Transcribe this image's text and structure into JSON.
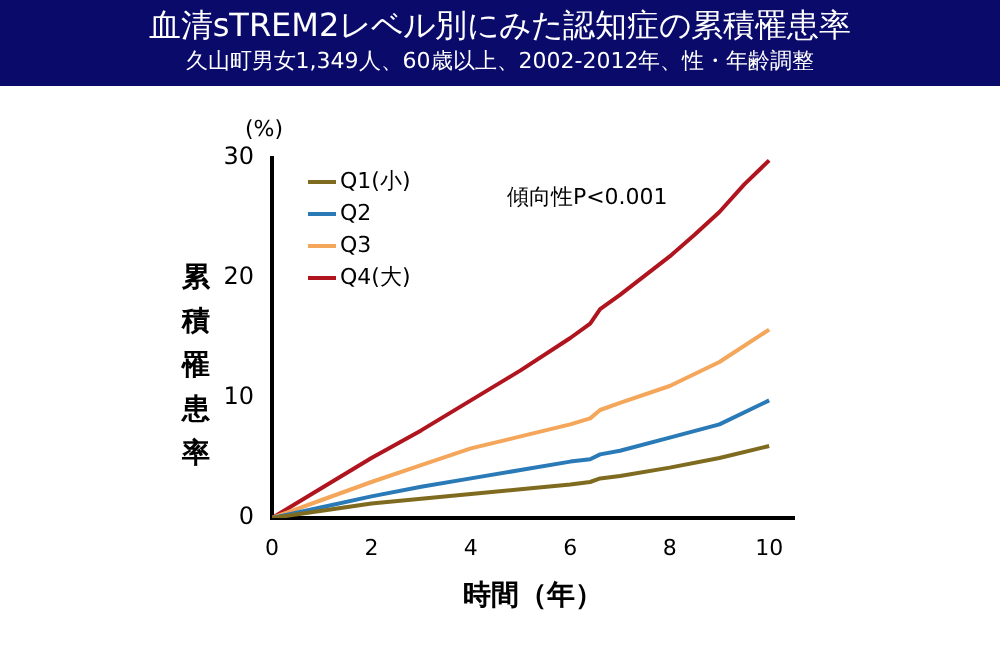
{
  "chart_data": {
    "type": "line",
    "title": "血清sTREM2レベル別にみた認知症の累積罹患率",
    "subtitle": "久山町男女1,349人、60歳以上、2002-2012年、性・年齢調整",
    "xlabel": "時間（年）",
    "ylabel": "累積罹患率",
    "annotations": [
      "傾向性P<0.001",
      "(%)"
    ],
    "xlim": [
      0,
      10.5
    ],
    "xticks": [
      0,
      2,
      4,
      6,
      8,
      10
    ],
    "ylim": [
      0,
      30
    ],
    "yticks": [
      0,
      10,
      20,
      30
    ],
    "grid": false,
    "legend": "top left",
    "marker": "none",
    "line_style": "solid",
    "series": [
      {
        "name": "Q1(小)",
        "color": "#7f6b1f",
        "x": [
          0,
          1,
          2,
          3,
          4,
          5,
          6,
          6.4,
          6.6,
          7,
          8,
          9,
          10
        ],
        "values": [
          0,
          0.6,
          1.2,
          1.6,
          2,
          2.4,
          2.8,
          3,
          3.3,
          3.5,
          4.2,
          5,
          6
        ]
      },
      {
        "name": "Q2",
        "color": "#2a7ab8",
        "x": [
          0,
          1,
          2,
          3,
          4,
          5,
          6,
          6.4,
          6.6,
          7,
          8,
          9,
          10
        ],
        "values": [
          0,
          0.9,
          1.8,
          2.6,
          3.3,
          4,
          4.7,
          4.9,
          5.3,
          5.6,
          6.7,
          7.8,
          9.8
        ]
      },
      {
        "name": "Q3",
        "color": "#f4a65a",
        "x": [
          0,
          1,
          2,
          3,
          4,
          5,
          6,
          6.4,
          6.6,
          7,
          8,
          9,
          10
        ],
        "values": [
          0,
          1.5,
          3,
          4.4,
          5.8,
          6.8,
          7.8,
          8.3,
          9,
          9.6,
          11,
          13,
          15.7
        ]
      },
      {
        "name": "Q4(大)",
        "color": "#b0151f",
        "x": [
          0,
          1,
          2,
          3,
          4,
          5,
          6,
          6.4,
          6.6,
          7,
          8,
          8.5,
          9,
          9.5,
          10
        ],
        "values": [
          0,
          2.5,
          5,
          7.3,
          9.8,
          12.3,
          15,
          16.2,
          17.4,
          18.6,
          21.8,
          23.6,
          25.5,
          27.8,
          29.8
        ]
      }
    ]
  }
}
